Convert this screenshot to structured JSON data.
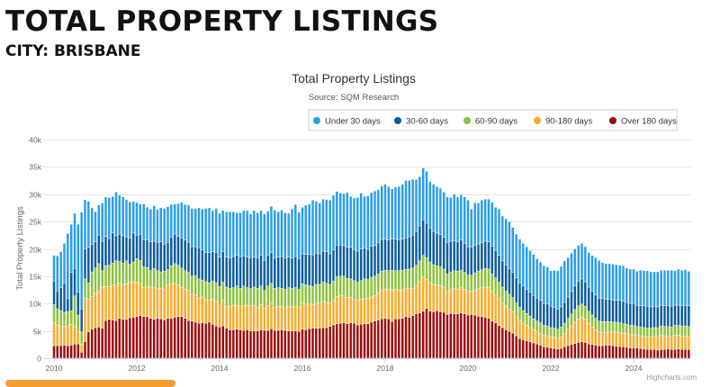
{
  "page": {
    "heading": "TOTAL PROPERTY LISTINGS",
    "subheading": "CITY: BRISBANE",
    "credit": "Highcharts.com"
  },
  "chart_data": {
    "type": "bar",
    "stacked": true,
    "title": "Total Property Listings",
    "subtitle": "Source: SQM Research",
    "ylabel": "Total Property Listings",
    "xlabel": "",
    "ylim": [
      0,
      40000
    ],
    "y_ticks": [
      "0",
      "5k",
      "10k",
      "15k",
      "20k",
      "25k",
      "30k",
      "35k",
      "40k"
    ],
    "x_ticks": [
      "2010",
      "2012",
      "2014",
      "2016",
      "2018",
      "2020",
      "2022",
      "2024"
    ],
    "x_start": "2010-01",
    "x_frequency": "monthly",
    "unit_note": "values in thousands of listings",
    "grid": true,
    "legend_position": "top-right",
    "series": [
      {
        "name": "Under 30 days",
        "color": "#2b9de8",
        "values": [
          4.7,
          6.4,
          6.6,
          7.3,
          11.8,
          8.8,
          10.1,
          12.4,
          17.7,
          9.0,
          8.4,
          6.7,
          5.5,
          5.5,
          7.0,
          7.2,
          7.5,
          6.7,
          8.0,
          7.1,
          7.1,
          6.8,
          6.6,
          5.8,
          6.0,
          5.5,
          6.5,
          6.0,
          6.0,
          6.5,
          6.0,
          6.2,
          6.5,
          6.5,
          6.0,
          5.5,
          6.0,
          6.5,
          6.5,
          6.8,
          7.0,
          7.0,
          7.3,
          7.5,
          8.0,
          8.2,
          7.5,
          8.0,
          8.0,
          7.5,
          8.3,
          8.5,
          8.2,
          7.8,
          8.0,
          8.3,
          8.5,
          8.0,
          8.5,
          8.2,
          8.2,
          8.5,
          8.0,
          8.5,
          8.8,
          8.3,
          8.5,
          8.3,
          8.0,
          9.0,
          9.5,
          8.5,
          8.5,
          9.0,
          9.2,
          10.0,
          9.5,
          9.3,
          9.5,
          9.5,
          9.8,
          10.0,
          9.8,
          9.5,
          9.5,
          10.0,
          9.3,
          9.5,
          9.8,
          10.2,
          9.5,
          9.8,
          9.8,
          10.0,
          9.7,
          9.8,
          10.0,
          9.8,
          9.2,
          9.5,
          9.8,
          10.0,
          10.5,
          10.3,
          10.2,
          9.5,
          9.0,
          9.5,
          9.5,
          8.5,
          8.6,
          8.5,
          8.5,
          8.3,
          8.4,
          8.0,
          8.5,
          8.2,
          8.3,
          8.5,
          8.5,
          7.0,
          7.8,
          7.5,
          7.8,
          7.7,
          7.8,
          8.0,
          7.9,
          8.5,
          8.2,
          8.4,
          8.6,
          8.2,
          8.0,
          8.0,
          7.8,
          7.8,
          7.6,
          7.5,
          7.2,
          7.0,
          6.9,
          6.8,
          6.5,
          6.8,
          7.0,
          7.4,
          7.6,
          7.2,
          7.0,
          6.8,
          6.6,
          6.5,
          6.4,
          6.3,
          6.6,
          6.8,
          6.9,
          6.6,
          6.5,
          6.5,
          6.6,
          6.5,
          6.4,
          6.5,
          6.3,
          6.3,
          6.3,
          6.2,
          6.5,
          6.4,
          6.5,
          6.4,
          6.3,
          6.4,
          6.4,
          6.5,
          6.5,
          6.6,
          6.3,
          6.6,
          6.5,
          6.5,
          6.3
        ]
      },
      {
        "name": "30-60 days",
        "color": "#0b5c9e",
        "values": [
          4.3,
          3.3,
          4.2,
          5.3,
          2.5,
          7.0,
          5.0,
          4.2,
          4.2,
          5.5,
          6.5,
          5.0,
          4.8,
          5.2,
          5.4,
          5.4,
          4.9,
          5.5,
          4.6,
          5.0,
          5.0,
          4.4,
          4.8,
          5.3,
          4.3,
          4.8,
          5.0,
          5.0,
          5.3,
          5.0,
          5.2,
          5.5,
          5.0,
          5.0,
          5.2,
          5.4,
          5.3,
          5.5,
          5.6,
          5.5,
          5.4,
          5.3,
          5.7,
          5.5,
          5.4,
          5.5,
          5.4,
          5.6,
          5.4,
          5.6,
          5.5,
          5.5,
          5.7,
          5.6,
          5.8,
          5.5,
          5.6,
          5.7,
          5.5,
          5.6,
          5.6,
          5.5,
          5.7,
          5.6,
          5.5,
          5.6,
          5.8,
          5.7,
          5.6,
          5.5,
          5.7,
          5.6,
          5.5,
          5.6,
          5.7,
          5.8,
          5.7,
          5.6,
          5.7,
          5.8,
          5.6,
          5.7,
          5.8,
          5.7,
          5.6,
          5.7,
          5.8,
          5.6,
          5.7,
          5.8,
          5.6,
          5.5,
          5.7,
          5.6,
          5.7,
          5.8,
          5.7,
          5.6,
          5.7,
          5.8,
          5.6,
          5.7,
          5.8,
          5.9,
          6.0,
          6.2,
          6.4,
          6.5,
          6.3,
          6.2,
          6.1,
          6.0,
          5.9,
          5.8,
          5.7,
          5.6,
          5.5,
          5.4,
          5.5,
          5.3,
          5.2,
          5.1,
          5.0,
          5.0,
          4.9,
          5.0,
          5.0,
          5.1,
          5.0,
          4.9,
          4.8,
          4.8,
          4.7,
          4.6,
          4.6,
          4.5,
          4.5,
          4.4,
          4.4,
          4.3,
          4.2,
          4.1,
          4.0,
          4.0,
          3.9,
          3.8,
          3.7,
          3.7,
          3.8,
          3.9,
          4.1,
          4.3,
          4.5,
          4.6,
          4.5,
          4.4,
          4.3,
          4.3,
          4.2,
          4.2,
          4.1,
          4.1,
          4.0,
          4.0,
          4.1,
          4.1,
          4.0,
          4.0,
          4.0,
          3.9,
          3.9,
          4.0,
          4.0,
          3.9,
          3.9,
          3.8,
          3.8,
          3.8,
          3.8,
          3.8,
          3.7,
          3.7,
          3.7,
          3.8,
          3.8
        ]
      },
      {
        "name": "60-90 days",
        "color": "#8dc13f",
        "values": [
          3.3,
          2.9,
          2.8,
          2.5,
          2.7,
          2.5,
          5.5,
          3.0,
          2.2,
          3.5,
          3.0,
          4.5,
          4.6,
          5.0,
          3.0,
          3.8,
          3.9,
          4.0,
          4.6,
          3.9,
          4.0,
          4.2,
          3.3,
          3.6,
          4.3,
          4.2,
          3.8,
          3.5,
          3.0,
          3.5,
          3.2,
          3.0,
          3.3,
          2.8,
          3.3,
          3.6,
          3.6,
          3.5,
          3.4,
          3.3,
          3.2,
          3.5,
          3.5,
          3.1,
          3.3,
          3.2,
          3.3,
          3.4,
          3.4,
          3.2,
          3.5,
          3.3,
          3.2,
          3.5,
          3.4,
          3.6,
          3.2,
          3.1,
          3.3,
          3.5,
          3.4,
          3.3,
          3.6,
          3.5,
          3.5,
          3.4,
          3.4,
          3.4,
          3.5,
          3.4,
          3.4,
          3.3,
          3.4,
          3.5,
          3.4,
          3.3,
          3.5,
          3.4,
          3.5,
          3.5,
          3.4,
          3.4,
          3.6,
          3.5,
          3.6,
          3.5,
          3.4,
          3.4,
          3.3,
          3.4,
          3.5,
          3.4,
          3.6,
          3.5,
          3.4,
          3.5,
          3.5,
          3.4,
          3.6,
          3.4,
          3.5,
          3.6,
          3.5,
          3.6,
          3.7,
          3.8,
          3.8,
          3.9,
          4.0,
          3.8,
          3.6,
          3.5,
          3.4,
          3.3,
          3.2,
          3.2,
          3.3,
          3.3,
          3.2,
          3.1,
          3.0,
          3.0,
          3.1,
          3.2,
          3.3,
          3.4,
          3.3,
          3.2,
          3.1,
          3.0,
          2.9,
          2.8,
          2.7,
          2.6,
          2.5,
          2.4,
          2.3,
          2.2,
          2.1,
          2.0,
          1.9,
          1.9,
          1.8,
          1.8,
          1.7,
          1.7,
          1.7,
          1.8,
          1.9,
          2.0,
          2.2,
          2.3,
          2.4,
          2.4,
          2.3,
          2.2,
          2.2,
          2.1,
          2.0,
          2.0,
          1.9,
          1.9,
          1.8,
          1.8,
          1.8,
          1.7,
          1.7,
          1.7,
          1.7,
          1.6,
          1.6,
          1.6,
          1.6,
          1.6,
          1.6,
          1.6,
          1.7,
          1.7,
          1.7,
          1.8,
          1.8,
          1.8,
          1.9,
          1.9,
          1.9
        ]
      },
      {
        "name": "90-180 days",
        "color": "#f8ab2a",
        "values": [
          4.2,
          3.8,
          3.6,
          3.5,
          3.5,
          3.8,
          3.3,
          2.3,
          1.5,
          8.0,
          6.0,
          6.0,
          6.3,
          6.6,
          7.5,
          6.2,
          6.0,
          6.4,
          6.3,
          6.5,
          6.3,
          6.5,
          6.5,
          6.5,
          6.3,
          5.9,
          5.3,
          5.5,
          5.7,
          5.8,
          5.5,
          5.6,
          5.6,
          6.1,
          6.3,
          6.2,
          5.8,
          5.4,
          5.3,
          5.5,
          5.0,
          5.0,
          4.6,
          4.7,
          4.3,
          4.0,
          4.6,
          4.5,
          4.0,
          4.8,
          4.0,
          4.3,
          4.5,
          4.4,
          4.2,
          4.5,
          4.5,
          4.6,
          4.7,
          4.3,
          4.6,
          4.0,
          4.5,
          4.8,
          4.2,
          4.4,
          4.2,
          4.1,
          4.4,
          4.4,
          4.5,
          4.4,
          4.9,
          4.7,
          4.5,
          4.3,
          4.5,
          4.6,
          4.8,
          4.6,
          4.3,
          4.6,
          5.0,
          5.1,
          4.9,
          4.8,
          4.6,
          4.4,
          4.5,
          4.6,
          4.7,
          4.7,
          4.6,
          4.7,
          5.0,
          5.2,
          5.3,
          5.4,
          5.8,
          5.4,
          5.3,
          5.2,
          5.1,
          5.2,
          5.0,
          5.1,
          5.7,
          6.3,
          5.3,
          5.2,
          5.0,
          4.7,
          4.8,
          4.6,
          4.2,
          4.4,
          4.6,
          4.5,
          4.6,
          4.5,
          4.3,
          4.2,
          4.6,
          5.0,
          5.3,
          5.5,
          5.7,
          5.4,
          5.1,
          4.9,
          4.5,
          4.3,
          4.1,
          3.9,
          3.5,
          3.3,
          3.0,
          2.8,
          2.6,
          2.4,
          2.3,
          2.2,
          2.1,
          2.1,
          2.0,
          2.0,
          1.9,
          2.1,
          2.4,
          3.0,
          3.4,
          3.9,
          4.3,
          4.5,
          4.3,
          3.8,
          3.2,
          2.8,
          2.5,
          2.4,
          2.4,
          2.4,
          2.5,
          2.6,
          2.6,
          2.5,
          2.5,
          2.4,
          2.4,
          2.3,
          2.3,
          2.3,
          2.3,
          2.3,
          2.4,
          2.5,
          2.6,
          2.5,
          2.4,
          2.3,
          2.6,
          2.5,
          2.4,
          2.4,
          2.3
        ]
      },
      {
        "name": "Over 180 days",
        "color": "#9a0c0c",
        "values": [
          2.3,
          2.3,
          2.3,
          2.4,
          2.3,
          2.4,
          2.6,
          2.6,
          1.1,
          3.0,
          4.8,
          5.3,
          5.6,
          5.7,
          5.5,
          6.9,
          7.1,
          7.0,
          6.9,
          7.3,
          7.1,
          7.1,
          7.4,
          7.5,
          7.6,
          7.8,
          7.6,
          7.6,
          7.3,
          7.1,
          7.3,
          7.2,
          7.0,
          7.3,
          7.3,
          7.5,
          7.6,
          7.6,
          7.3,
          6.9,
          6.8,
          6.6,
          6.4,
          6.5,
          6.4,
          6.6,
          6.2,
          5.9,
          5.7,
          5.9,
          5.5,
          5.2,
          5.2,
          5.3,
          5.2,
          5.1,
          5.2,
          5.0,
          5.0,
          5.0,
          5.2,
          5.1,
          5.1,
          5.4,
          5.1,
          5.1,
          5.2,
          5.1,
          5.0,
          5.0,
          5.0,
          4.9,
          5.3,
          5.2,
          5.4,
          5.5,
          5.5,
          5.5,
          5.6,
          5.6,
          5.8,
          6.1,
          6.3,
          6.4,
          6.5,
          6.3,
          6.5,
          6.4,
          6.1,
          6.2,
          6.3,
          6.3,
          6.6,
          6.8,
          7.0,
          7.2,
          7.3,
          7.2,
          6.7,
          7.2,
          7.2,
          7.3,
          7.6,
          7.5,
          7.8,
          8.1,
          8.3,
          8.6,
          9.1,
          8.6,
          8.5,
          8.7,
          8.5,
          8.4,
          8.0,
          8.2,
          8.1,
          8.1,
          8.3,
          8.1,
          7.9,
          8.0,
          7.9,
          7.7,
          7.6,
          7.5,
          7.3,
          6.8,
          6.5,
          6.0,
          5.6,
          5.2,
          4.9,
          4.6,
          4.1,
          3.6,
          3.4,
          3.2,
          3.0,
          2.8,
          2.6,
          2.4,
          2.1,
          2.0,
          1.9,
          1.8,
          1.7,
          1.8,
          2.1,
          2.3,
          2.5,
          2.7,
          2.9,
          3.0,
          2.9,
          2.6,
          2.5,
          2.4,
          2.3,
          2.3,
          2.4,
          2.4,
          2.3,
          2.2,
          2.1,
          2.1,
          2.0,
          1.9,
          1.9,
          1.9,
          1.8,
          1.7,
          1.6,
          1.6,
          1.6,
          1.5,
          1.6,
          1.6,
          1.7,
          1.6,
          1.6,
          1.7,
          1.6,
          1.6,
          1.6
        ]
      }
    ]
  }
}
